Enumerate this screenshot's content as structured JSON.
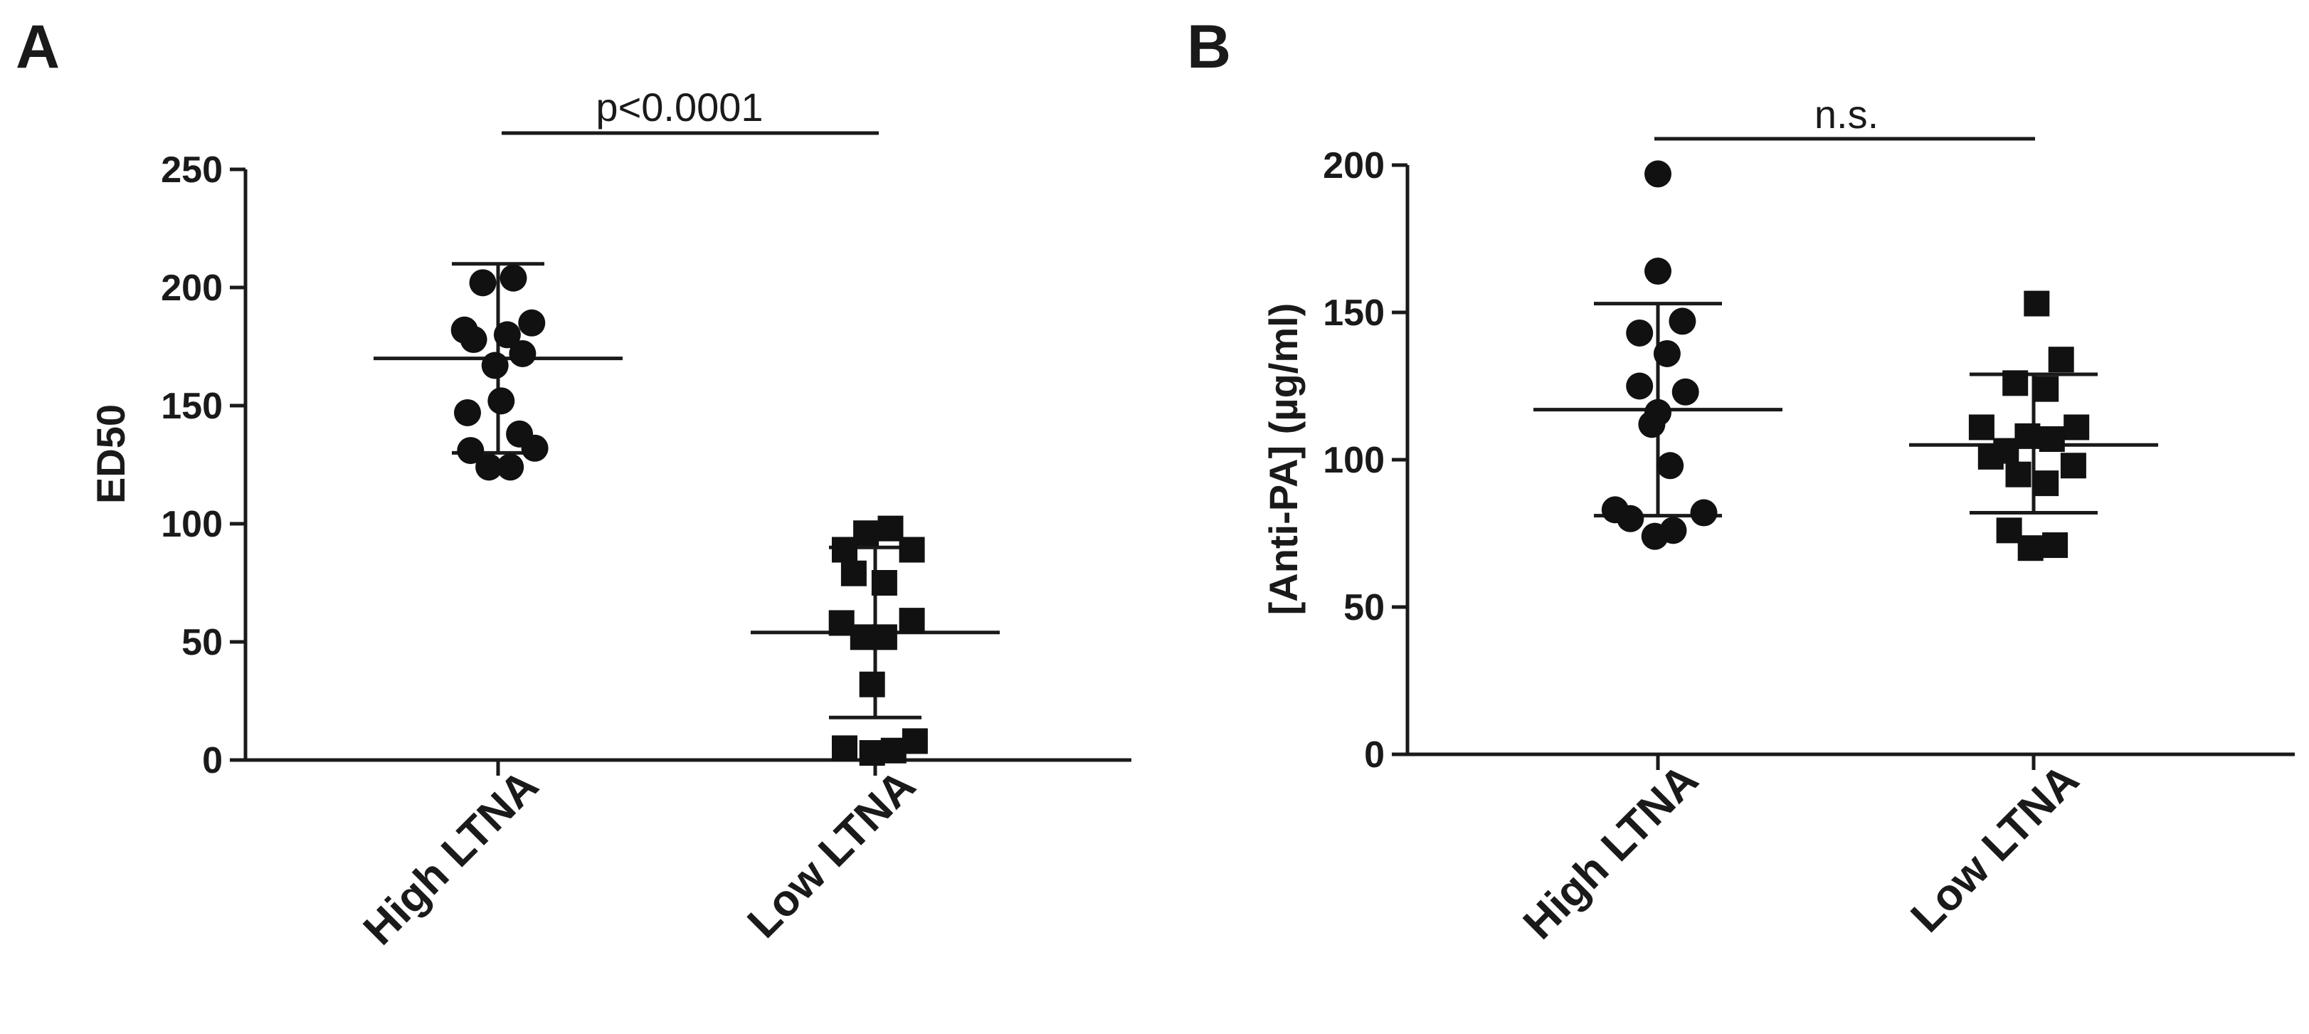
{
  "chart_data": [
    {
      "panel": "A",
      "type": "scatter",
      "ylabel": "ED50",
      "ylim": [
        0,
        250
      ],
      "yticks": [
        0,
        50,
        100,
        150,
        200,
        250
      ],
      "categories": [
        "High LTNA",
        "Low LTNA"
      ],
      "comparison": {
        "label": "p<0.0001",
        "between": [
          "High LTNA",
          "Low LTNA"
        ]
      },
      "series": [
        {
          "name": "High LTNA",
          "marker": "circle",
          "mean": 170,
          "sd_low": 130,
          "sd_high": 210,
          "points": [
            {
              "offset": 0.05,
              "value": 204
            },
            {
              "offset": -0.05,
              "value": 202
            },
            {
              "offset": -0.11,
              "value": 182
            },
            {
              "offset": 0.11,
              "value": 185
            },
            {
              "offset": -0.08,
              "value": 178
            },
            {
              "offset": 0.03,
              "value": 180
            },
            {
              "offset": -0.01,
              "value": 167
            },
            {
              "offset": 0.08,
              "value": 172
            },
            {
              "offset": 0.01,
              "value": 152
            },
            {
              "offset": -0.1,
              "value": 147
            },
            {
              "offset": -0.09,
              "value": 131
            },
            {
              "offset": 0.07,
              "value": 138
            },
            {
              "offset": 0.12,
              "value": 132
            },
            {
              "offset": -0.03,
              "value": 124
            },
            {
              "offset": 0.04,
              "value": 124
            }
          ]
        },
        {
          "name": "Low LTNA",
          "marker": "square",
          "mean": 54,
          "sd_low": 18,
          "sd_high": 90,
          "points": [
            {
              "offset": 0.05,
              "value": 98
            },
            {
              "offset": -0.03,
              "value": 96
            },
            {
              "offset": -0.1,
              "value": 89
            },
            {
              "offset": 0.12,
              "value": 89
            },
            {
              "offset": -0.07,
              "value": 79
            },
            {
              "offset": 0.03,
              "value": 75
            },
            {
              "offset": -0.11,
              "value": 58
            },
            {
              "offset": 0.12,
              "value": 59
            },
            {
              "offset": -0.04,
              "value": 52
            },
            {
              "offset": 0.03,
              "value": 52
            },
            {
              "offset": -0.01,
              "value": 32
            },
            {
              "offset": -0.1,
              "value": 5
            },
            {
              "offset": -0.01,
              "value": 3
            },
            {
              "offset": 0.06,
              "value": 4
            },
            {
              "offset": 0.13,
              "value": 8
            }
          ]
        }
      ]
    },
    {
      "panel": "B",
      "type": "scatter",
      "ylabel": "[Anti-PA] (µg/ml)",
      "ylim": [
        0,
        200
      ],
      "yticks": [
        0,
        50,
        100,
        150,
        200
      ],
      "categories": [
        "High LTNA",
        "Low LTNA"
      ],
      "comparison": {
        "label": "n.s.",
        "between": [
          "High LTNA",
          "Low LTNA"
        ]
      },
      "series": [
        {
          "name": "High LTNA",
          "marker": "circle",
          "mean": 117,
          "sd_low": 81,
          "sd_high": 153,
          "points": [
            {
              "offset": 0.0,
              "value": 197
            },
            {
              "offset": 0.0,
              "value": 164
            },
            {
              "offset": 0.08,
              "value": 147
            },
            {
              "offset": -0.06,
              "value": 143
            },
            {
              "offset": 0.03,
              "value": 136
            },
            {
              "offset": -0.06,
              "value": 125
            },
            {
              "offset": 0.09,
              "value": 123
            },
            {
              "offset": 0.0,
              "value": 116
            },
            {
              "offset": -0.02,
              "value": 112
            },
            {
              "offset": 0.04,
              "value": 98
            },
            {
              "offset": -0.14,
              "value": 83
            },
            {
              "offset": 0.15,
              "value": 82
            },
            {
              "offset": -0.09,
              "value": 80
            },
            {
              "offset": -0.01,
              "value": 74
            },
            {
              "offset": 0.05,
              "value": 76
            }
          ]
        },
        {
          "name": "Low LTNA",
          "marker": "square",
          "mean": 105,
          "sd_low": 82,
          "sd_high": 129,
          "points": [
            {
              "offset": 0.01,
              "value": 153
            },
            {
              "offset": 0.09,
              "value": 134
            },
            {
              "offset": -0.06,
              "value": 126
            },
            {
              "offset": 0.04,
              "value": 124
            },
            {
              "offset": -0.17,
              "value": 111
            },
            {
              "offset": 0.14,
              "value": 111
            },
            {
              "offset": -0.02,
              "value": 108
            },
            {
              "offset": 0.06,
              "value": 107
            },
            {
              "offset": -0.09,
              "value": 103
            },
            {
              "offset": -0.14,
              "value": 101
            },
            {
              "offset": 0.13,
              "value": 98
            },
            {
              "offset": -0.05,
              "value": 95
            },
            {
              "offset": 0.04,
              "value": 92
            },
            {
              "offset": -0.08,
              "value": 76
            },
            {
              "offset": -0.01,
              "value": 70
            },
            {
              "offset": 0.07,
              "value": 71
            }
          ]
        }
      ]
    }
  ]
}
